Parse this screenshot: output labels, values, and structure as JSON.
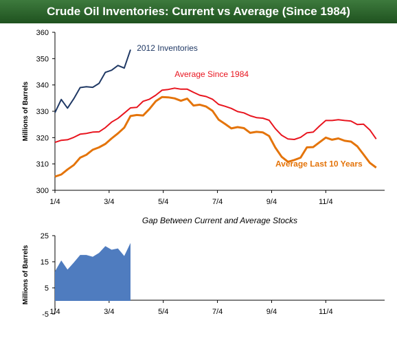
{
  "title": "Crude Oil Inventories: Current vs Average (Since 1984)",
  "colors": {
    "title_bar": "#2a622a",
    "current": "#1f3864",
    "avg_since_1984": "#e8141e",
    "avg_last_10": "#e4740a",
    "gap_fill": "#4f7cbf"
  },
  "chart_data": [
    {
      "type": "line",
      "title": "",
      "ylabel": "Millions of Barrels",
      "ylim": [
        300,
        360
      ],
      "yticks": [
        300,
        310,
        320,
        330,
        340,
        350,
        360
      ],
      "x_ticks": [
        "1/4",
        "3/4",
        "5/4",
        "7/4",
        "9/4",
        "11/4"
      ],
      "grid": false,
      "series": [
        {
          "name": "2012 Inventories",
          "x": [
            1,
            2,
            3,
            4,
            5,
            6,
            7,
            8,
            9,
            10,
            11,
            12,
            13
          ],
          "values": [
            329.5,
            334.5,
            331.2,
            334.8,
            339.0,
            339.3,
            339.1,
            340.6,
            344.8,
            345.6,
            347.4,
            346.4,
            353.4
          ]
        },
        {
          "name": "Average Since 1984",
          "x": [
            1,
            2,
            3,
            4,
            5,
            6,
            7,
            8,
            9,
            10,
            11,
            12,
            13,
            14,
            15,
            16,
            17,
            18,
            19,
            20,
            21,
            22,
            23,
            24,
            25,
            26,
            27,
            28,
            29,
            30,
            31,
            32,
            33,
            34,
            35,
            36,
            37,
            38,
            39,
            40,
            41,
            42,
            43,
            44,
            45,
            46,
            47,
            48,
            49,
            50,
            51,
            52
          ],
          "values": [
            318.2,
            319.0,
            319.2,
            320.1,
            321.3,
            321.6,
            322.1,
            322.2,
            323.8,
            325.9,
            327.3,
            329.3,
            331.3,
            331.5,
            333.8,
            334.6,
            336.1,
            338.0,
            338.3,
            338.8,
            338.4,
            338.4,
            337.2,
            336.1,
            335.6,
            334.6,
            332.6,
            331.9,
            331.1,
            329.9,
            329.4,
            328.3,
            327.6,
            327.4,
            326.6,
            323.4,
            320.9,
            319.5,
            319.3,
            320.1,
            321.8,
            322.1,
            324.4,
            326.5,
            326.5,
            326.8,
            326.5,
            326.3,
            325.0,
            325.1,
            322.9,
            319.5
          ]
        },
        {
          "name": "Average Last 10 Years",
          "x": [
            1,
            2,
            3,
            4,
            5,
            6,
            7,
            8,
            9,
            10,
            11,
            12,
            13,
            14,
            15,
            16,
            17,
            18,
            19,
            20,
            21,
            22,
            23,
            24,
            25,
            26,
            27,
            28,
            29,
            30,
            31,
            32,
            33,
            34,
            35,
            36,
            37,
            38,
            39,
            40,
            41,
            42,
            43,
            44,
            45,
            46,
            47,
            48,
            49,
            50,
            51,
            52
          ],
          "values": [
            305.2,
            306.0,
            307.9,
            309.6,
            312.4,
            313.5,
            315.4,
            316.3,
            317.6,
            319.7,
            321.6,
            323.8,
            328.2,
            328.6,
            328.4,
            330.9,
            333.8,
            335.4,
            335.3,
            334.9,
            334.0,
            334.8,
            332.2,
            332.5,
            331.8,
            330.2,
            326.8,
            325.2,
            323.5,
            324.0,
            323.6,
            321.8,
            322.2,
            322.0,
            320.6,
            316.2,
            312.7,
            310.8,
            311.5,
            312.4,
            316.3,
            316.4,
            318.2,
            320.0,
            319.2,
            319.7,
            318.8,
            318.5,
            316.7,
            313.6,
            310.4,
            308.6
          ]
        }
      ],
      "annotations": [
        {
          "text": "2012 Inventories",
          "series": 0,
          "x": 14,
          "y": 353
        },
        {
          "text": "Average Since 1984",
          "series": 1,
          "x": 20,
          "y": 343
        },
        {
          "text": "Average Last 10 Years",
          "series": 2,
          "x": 36,
          "y": 309
        }
      ]
    },
    {
      "type": "area",
      "title": "Gap Between Current and Average Stocks",
      "ylabel": "Millions of Barrels",
      "ylim": [
        -5,
        25
      ],
      "yticks": [
        -5,
        5,
        15,
        25
      ],
      "x_ticks": [
        "1/4",
        "3/4",
        "5/4",
        "7/4",
        "9/4",
        "11/4"
      ],
      "grid": false,
      "series": [
        {
          "name": "Gap",
          "x": [
            1,
            2,
            3,
            4,
            5,
            6,
            7,
            8,
            9,
            10,
            11,
            12,
            13
          ],
          "values": [
            11.3,
            15.5,
            12.0,
            14.7,
            17.6,
            17.6,
            16.9,
            18.4,
            21.0,
            19.6,
            20.1,
            17.2,
            22.2
          ]
        }
      ]
    }
  ]
}
